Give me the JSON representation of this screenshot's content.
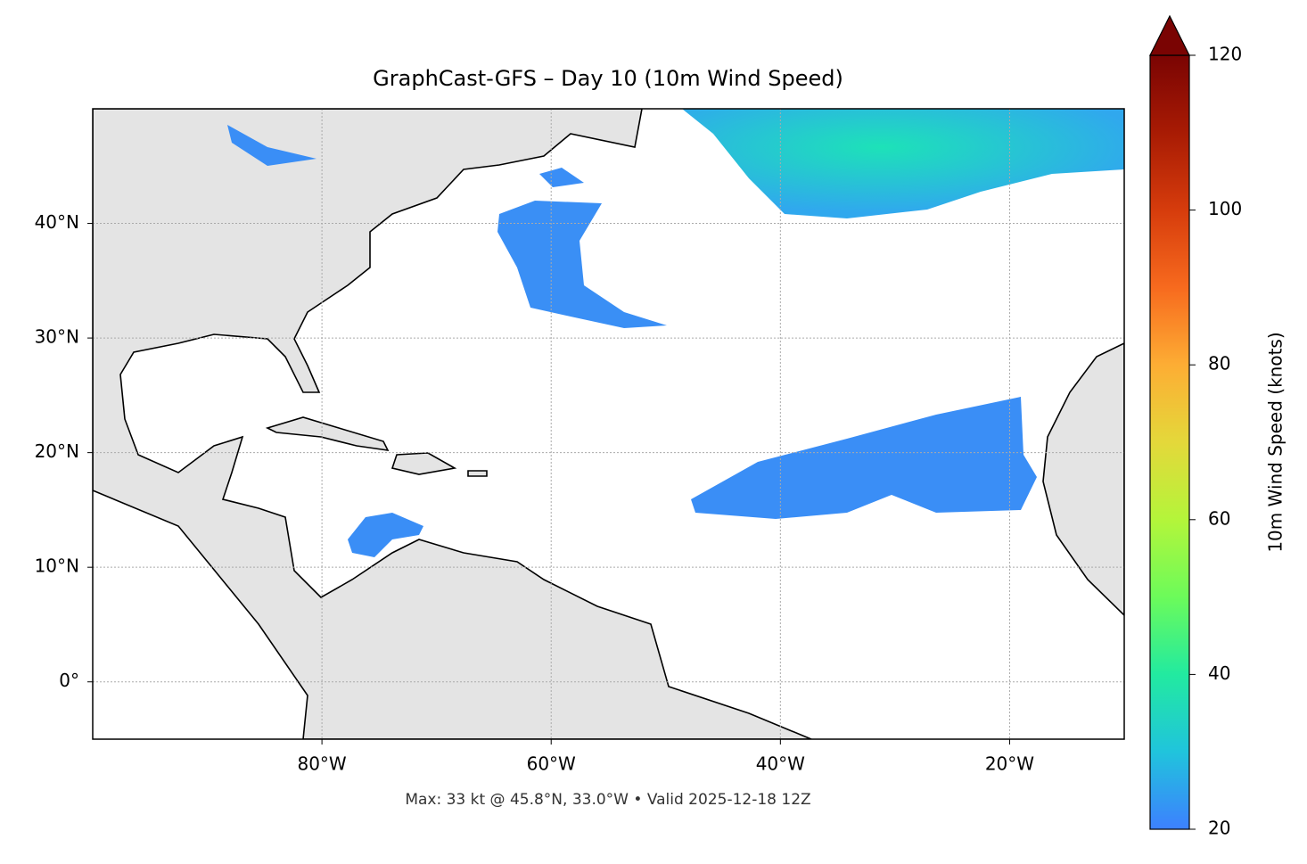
{
  "chart_data": {
    "type": "map",
    "title": "GraphCast-GFS – Day 10 (10m Wind Speed)",
    "xlim": [
      -100,
      -10
    ],
    "ylim": [
      -5,
      50
    ],
    "xticks": [
      {
        "value": -80,
        "label": "80°W"
      },
      {
        "value": -60,
        "label": "60°W"
      },
      {
        "value": -40,
        "label": "40°W"
      },
      {
        "value": -20,
        "label": "20°W"
      }
    ],
    "yticks": [
      {
        "value": 0,
        "label": "0°"
      },
      {
        "value": 10,
        "label": "10°N"
      },
      {
        "value": 20,
        "label": "20°N"
      },
      {
        "value": 30,
        "label": "30°N"
      },
      {
        "value": 40,
        "label": "40°N"
      }
    ],
    "grid": true,
    "colorbar": {
      "label": "10m Wind Speed (knots)",
      "lim": [
        20,
        120
      ],
      "ticks": [
        20,
        40,
        60,
        80,
        100,
        120
      ],
      "extend": "max"
    },
    "annotation": "Max: 33 kt @ 45.8°N, 33.0°W • Valid 2025-12-18 12Z"
  }
}
